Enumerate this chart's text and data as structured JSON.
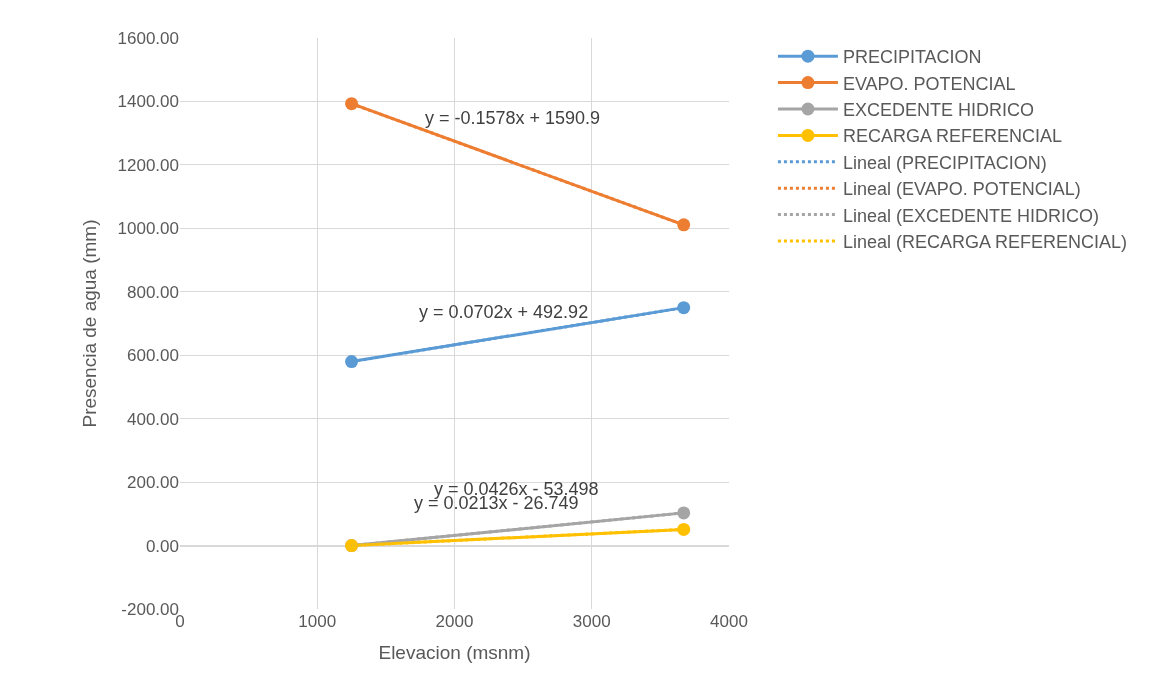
{
  "chart_data": {
    "type": "line",
    "xlabel": "Elevacion (msnm)",
    "ylabel": "Presencia de agua (mm)",
    "x": [
      1250,
      3670
    ],
    "series": [
      {
        "name": "PRECIPITACION",
        "color": "#5b9bd5",
        "values": [
          580,
          750
        ],
        "marker": "circle",
        "line_style": "solid"
      },
      {
        "name": "EVAPO. POTENCIAL",
        "color": "#ed7d31",
        "values": [
          1393,
          1011
        ],
        "marker": "circle",
        "line_style": "solid"
      },
      {
        "name": "EXCEDENTE HIDRICO",
        "color": "#a5a5a5",
        "values": [
          0,
          103
        ],
        "marker": "circle",
        "line_style": "solid"
      },
      {
        "name": "RECARGA REFERENCIAL",
        "color": "#ffc000",
        "values": [
          0,
          51
        ],
        "marker": "circle",
        "line_style": "solid"
      },
      {
        "name": "Lineal (PRECIPITACION)",
        "color": "#5b9bd5",
        "values": [
          580,
          750
        ],
        "marker": "none",
        "line_style": "dotted"
      },
      {
        "name": "Lineal (EVAPO. POTENCIAL)",
        "color": "#ed7d31",
        "values": [
          1393,
          1011
        ],
        "marker": "none",
        "line_style": "dotted"
      },
      {
        "name": "Lineal (EXCEDENTE HIDRICO)",
        "color": "#a5a5a5",
        "values": [
          0,
          103
        ],
        "marker": "none",
        "line_style": "dotted"
      },
      {
        "name": "Lineal (RECARGA REFERENCIAL)",
        "color": "#ffc000",
        "values": [
          0,
          51
        ],
        "marker": "none",
        "line_style": "dotted"
      }
    ],
    "xlim": [
      0,
      4000
    ],
    "xticks": [
      0,
      1000,
      2000,
      3000,
      4000
    ],
    "ylim": [
      -200,
      1600
    ],
    "yticks": [
      {
        "value": -200,
        "label": "-200.00"
      },
      {
        "value": 0,
        "label": "0.00"
      },
      {
        "value": 200,
        "label": "200.00"
      },
      {
        "value": 400,
        "label": "400.00"
      },
      {
        "value": 600,
        "label": "600.00"
      },
      {
        "value": 800,
        "label": "800.00"
      },
      {
        "value": 1000,
        "label": "1000.00"
      },
      {
        "value": 1200,
        "label": "1200.00"
      },
      {
        "value": 1400,
        "label": "1400.00"
      },
      {
        "value": 1600,
        "label": "1600.00"
      }
    ],
    "annotations": [
      "y = -0.1578x + 1590.9",
      "y = 0.0702x + 492.92",
      "y = 0.0426x - 53.498",
      "y = 0.0213x - 26.749"
    ],
    "grid": true,
    "legend": "right"
  }
}
